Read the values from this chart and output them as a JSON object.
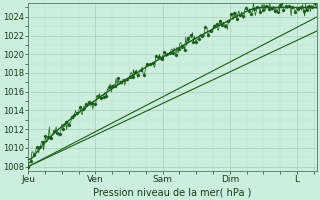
{
  "bg_color": "#cceedd",
  "plot_bg_color": "#cceedd",
  "grid_major_color": "#aaccbb",
  "grid_minor_color": "#bbddcc",
  "line_color": "#1a5c1a",
  "xlabel_text": "Pression niveau de la mer( hPa )",
  "x_tick_labels": [
    "Jeu",
    "Ven",
    "Sam",
    "Dim",
    "L"
  ],
  "x_tick_positions": [
    0,
    1,
    2,
    3,
    4
  ],
  "ylim": [
    1007.5,
    1025.5
  ],
  "yticks": [
    1008,
    1010,
    1012,
    1014,
    1016,
    1018,
    1020,
    1022,
    1024
  ],
  "xlim_end": 4.3,
  "n_points": 300,
  "x_days": 4.3
}
